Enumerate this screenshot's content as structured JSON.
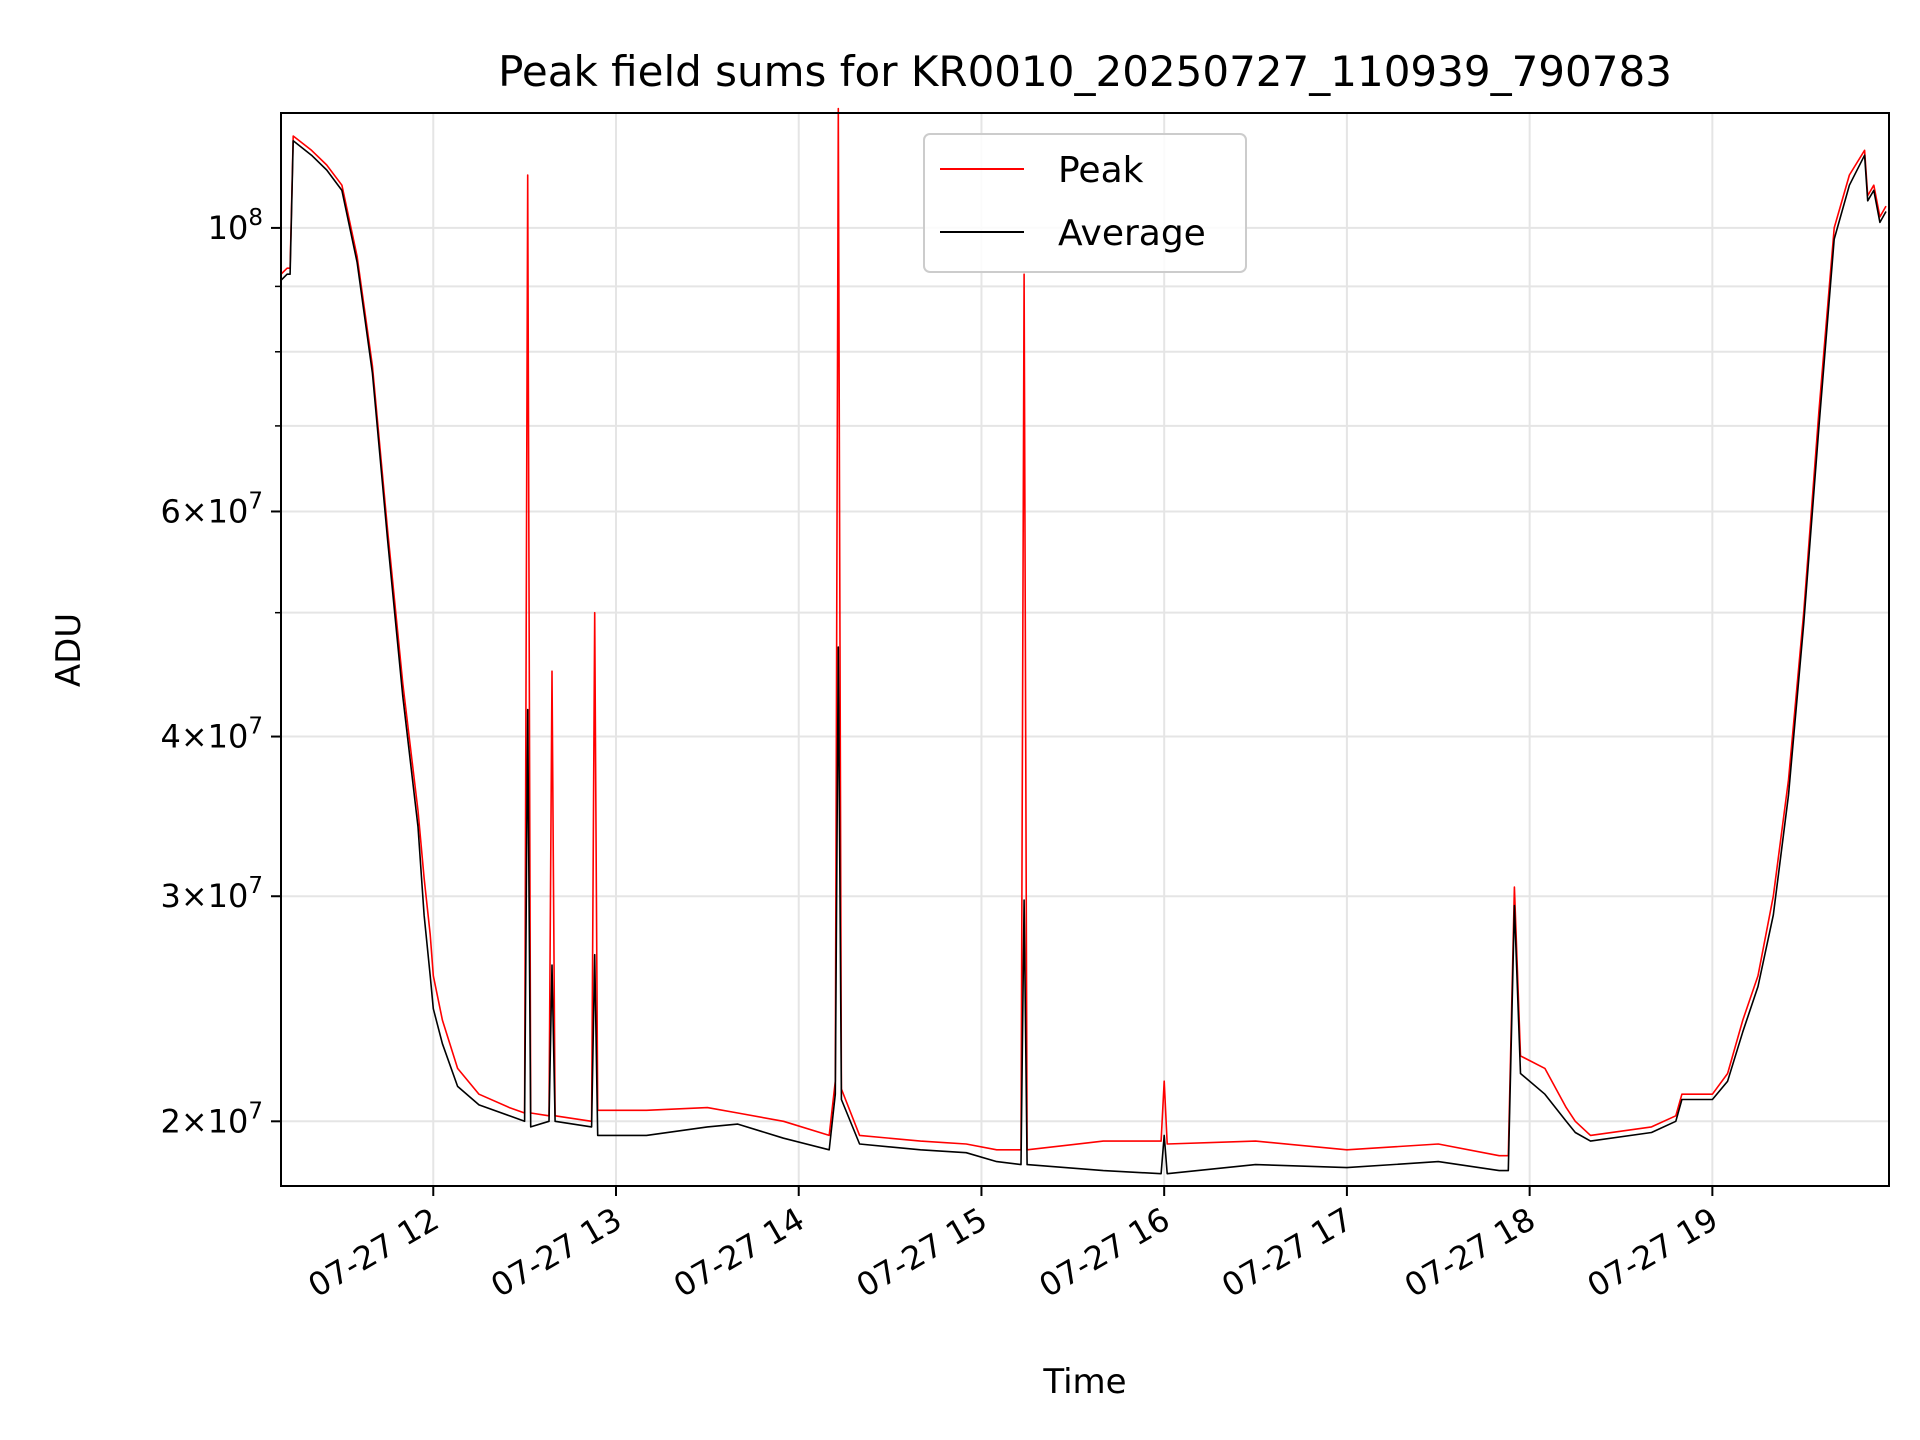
{
  "chart_data": {
    "type": "line",
    "title": "Peak field sums for KR0010_20250727_110939_790783",
    "xlabel": "Time",
    "ylabel": "ADU",
    "yscale": "log",
    "ylim": [
      17800000,
      123000000
    ],
    "xlim": [
      "2025-07-27 11:10",
      "2025-07-27 19:58"
    ],
    "grid": true,
    "legend_position": "top-center",
    "x_ticks": [
      {
        "label": "07-27 12",
        "value": "2025-07-27 12:00"
      },
      {
        "label": "07-27 13",
        "value": "2025-07-27 13:00"
      },
      {
        "label": "07-27 14",
        "value": "2025-07-27 14:00"
      },
      {
        "label": "07-27 15",
        "value": "2025-07-27 15:00"
      },
      {
        "label": "07-27 16",
        "value": "2025-07-27 16:00"
      },
      {
        "label": "07-27 17",
        "value": "2025-07-27 17:00"
      },
      {
        "label": "07-27 18",
        "value": "2025-07-27 18:00"
      },
      {
        "label": "07-27 19",
        "value": "2025-07-27 19:00"
      }
    ],
    "y_ticks": [
      {
        "base": "10",
        "exp": "8",
        "value": 100000000
      },
      {
        "coef": "6",
        "base": "10",
        "exp": "7",
        "value": 60000000
      },
      {
        "coef": "4",
        "base": "10",
        "exp": "7",
        "value": 40000000
      },
      {
        "coef": "3",
        "base": "10",
        "exp": "7",
        "value": 30000000
      },
      {
        "coef": "2",
        "base": "10",
        "exp": "7",
        "value": 20000000
      }
    ],
    "y_minor_ticks": [
      50000000,
      70000000,
      80000000,
      90000000
    ],
    "series": [
      {
        "name": "Peak",
        "color": "#ff0000",
        "points": [
          [
            "2025-07-27 11:10",
            92000000
          ],
          [
            "2025-07-27 11:12",
            93000000
          ],
          [
            "2025-07-27 11:13",
            93000000
          ],
          [
            "2025-07-27 11:14",
            118000000
          ],
          [
            "2025-07-27 11:20",
            115000000
          ],
          [
            "2025-07-27 11:25",
            112000000
          ],
          [
            "2025-07-27 11:30",
            108000000
          ],
          [
            "2025-07-27 11:35",
            95000000
          ],
          [
            "2025-07-27 11:40",
            78000000
          ],
          [
            "2025-07-27 11:45",
            58000000
          ],
          [
            "2025-07-27 11:50",
            44000000
          ],
          [
            "2025-07-27 11:55",
            35000000
          ],
          [
            "2025-07-27 11:57",
            31000000
          ],
          [
            "2025-07-27 11:59",
            28000000
          ],
          [
            "2025-07-27 12:00",
            26000000
          ],
          [
            "2025-07-27 12:03",
            24000000
          ],
          [
            "2025-07-27 12:08",
            22000000
          ],
          [
            "2025-07-27 12:15",
            21000000
          ],
          [
            "2025-07-27 12:25",
            20500000
          ],
          [
            "2025-07-27 12:30",
            20300000
          ],
          [
            "2025-07-27 12:31",
            110000000
          ],
          [
            "2025-07-27 12:32",
            20300000
          ],
          [
            "2025-07-27 12:38",
            20200000
          ],
          [
            "2025-07-27 12:39",
            45000000
          ],
          [
            "2025-07-27 12:40",
            20200000
          ],
          [
            "2025-07-27 12:52",
            20000000
          ],
          [
            "2025-07-27 12:53",
            50000000
          ],
          [
            "2025-07-27 12:54",
            20400000
          ],
          [
            "2025-07-27 13:10",
            20400000
          ],
          [
            "2025-07-27 13:30",
            20500000
          ],
          [
            "2025-07-27 13:40",
            20300000
          ],
          [
            "2025-07-27 13:55",
            20000000
          ],
          [
            "2025-07-27 14:10",
            19500000
          ],
          [
            "2025-07-27 14:12",
            21500000
          ],
          [
            "2025-07-27 14:13",
            124000000
          ],
          [
            "2025-07-27 14:14",
            21200000
          ],
          [
            "2025-07-27 14:20",
            19500000
          ],
          [
            "2025-07-27 14:40",
            19300000
          ],
          [
            "2025-07-27 14:55",
            19200000
          ],
          [
            "2025-07-27 15:05",
            19000000
          ],
          [
            "2025-07-27 15:13",
            19000000
          ],
          [
            "2025-07-27 15:14",
            92000000
          ],
          [
            "2025-07-27 15:15",
            19000000
          ],
          [
            "2025-07-27 15:40",
            19300000
          ],
          [
            "2025-07-27 15:59",
            19300000
          ],
          [
            "2025-07-27 16:00",
            21500000
          ],
          [
            "2025-07-27 16:01",
            19200000
          ],
          [
            "2025-07-27 16:30",
            19300000
          ],
          [
            "2025-07-27 17:00",
            19000000
          ],
          [
            "2025-07-27 17:30",
            19200000
          ],
          [
            "2025-07-27 17:50",
            18800000
          ],
          [
            "2025-07-27 17:53",
            18800000
          ],
          [
            "2025-07-27 17:55",
            30500000
          ],
          [
            "2025-07-27 17:57",
            22500000
          ],
          [
            "2025-07-27 18:05",
            22000000
          ],
          [
            "2025-07-27 18:12",
            20500000
          ],
          [
            "2025-07-27 18:15",
            20000000
          ],
          [
            "2025-07-27 18:20",
            19500000
          ],
          [
            "2025-07-27 18:40",
            19800000
          ],
          [
            "2025-07-27 18:48",
            20200000
          ],
          [
            "2025-07-27 18:50",
            21000000
          ],
          [
            "2025-07-27 19:00",
            21000000
          ],
          [
            "2025-07-27 19:05",
            21800000
          ],
          [
            "2025-07-27 19:10",
            24000000
          ],
          [
            "2025-07-27 19:15",
            26000000
          ],
          [
            "2025-07-27 19:20",
            30000000
          ],
          [
            "2025-07-27 19:25",
            37000000
          ],
          [
            "2025-07-27 19:30",
            50000000
          ],
          [
            "2025-07-27 19:35",
            72000000
          ],
          [
            "2025-07-27 19:40",
            100000000
          ],
          [
            "2025-07-27 19:45",
            110000000
          ],
          [
            "2025-07-27 19:50",
            115000000
          ],
          [
            "2025-07-27 19:51",
            106000000
          ],
          [
            "2025-07-27 19:53",
            108000000
          ],
          [
            "2025-07-27 19:55",
            102000000
          ],
          [
            "2025-07-27 19:57",
            104000000
          ]
        ]
      },
      {
        "name": "Average",
        "color": "#000000",
        "points": [
          [
            "2025-07-27 11:10",
            91000000
          ],
          [
            "2025-07-27 11:12",
            92000000
          ],
          [
            "2025-07-27 11:13",
            92000000
          ],
          [
            "2025-07-27 11:14",
            117000000
          ],
          [
            "2025-07-27 11:20",
            114000000
          ],
          [
            "2025-07-27 11:25",
            111000000
          ],
          [
            "2025-07-27 11:30",
            107000000
          ],
          [
            "2025-07-27 11:35",
            94000000
          ],
          [
            "2025-07-27 11:40",
            77000000
          ],
          [
            "2025-07-27 11:45",
            57000000
          ],
          [
            "2025-07-27 11:50",
            43000000
          ],
          [
            "2025-07-27 11:55",
            34000000
          ],
          [
            "2025-07-27 11:57",
            29000000
          ],
          [
            "2025-07-27 11:59",
            26000000
          ],
          [
            "2025-07-27 12:00",
            24500000
          ],
          [
            "2025-07-27 12:03",
            23000000
          ],
          [
            "2025-07-27 12:08",
            21300000
          ],
          [
            "2025-07-27 12:15",
            20600000
          ],
          [
            "2025-07-27 12:25",
            20200000
          ],
          [
            "2025-07-27 12:30",
            20000000
          ],
          [
            "2025-07-27 12:31",
            42000000
          ],
          [
            "2025-07-27 12:32",
            19800000
          ],
          [
            "2025-07-27 12:38",
            20000000
          ],
          [
            "2025-07-27 12:39",
            26500000
          ],
          [
            "2025-07-27 12:40",
            20000000
          ],
          [
            "2025-07-27 12:52",
            19800000
          ],
          [
            "2025-07-27 12:53",
            27000000
          ],
          [
            "2025-07-27 12:54",
            19500000
          ],
          [
            "2025-07-27 13:10",
            19500000
          ],
          [
            "2025-07-27 13:30",
            19800000
          ],
          [
            "2025-07-27 13:40",
            19900000
          ],
          [
            "2025-07-27 13:55",
            19400000
          ],
          [
            "2025-07-27 14:10",
            19000000
          ],
          [
            "2025-07-27 14:12",
            21000000
          ],
          [
            "2025-07-27 14:13",
            47000000
          ],
          [
            "2025-07-27 14:14",
            20800000
          ],
          [
            "2025-07-27 14:20",
            19200000
          ],
          [
            "2025-07-27 14:40",
            19000000
          ],
          [
            "2025-07-27 14:55",
            18900000
          ],
          [
            "2025-07-27 15:05",
            18600000
          ],
          [
            "2025-07-27 15:13",
            18500000
          ],
          [
            "2025-07-27 15:14",
            29800000
          ],
          [
            "2025-07-27 15:15",
            18500000
          ],
          [
            "2025-07-27 15:40",
            18300000
          ],
          [
            "2025-07-27 15:59",
            18200000
          ],
          [
            "2025-07-27 16:00",
            19500000
          ],
          [
            "2025-07-27 16:01",
            18200000
          ],
          [
            "2025-07-27 16:30",
            18500000
          ],
          [
            "2025-07-27 17:00",
            18400000
          ],
          [
            "2025-07-27 17:30",
            18600000
          ],
          [
            "2025-07-27 17:50",
            18300000
          ],
          [
            "2025-07-27 17:53",
            18300000
          ],
          [
            "2025-07-27 17:55",
            29500000
          ],
          [
            "2025-07-27 17:57",
            21800000
          ],
          [
            "2025-07-27 18:05",
            21000000
          ],
          [
            "2025-07-27 18:12",
            20000000
          ],
          [
            "2025-07-27 18:15",
            19600000
          ],
          [
            "2025-07-27 18:20",
            19300000
          ],
          [
            "2025-07-27 18:40",
            19600000
          ],
          [
            "2025-07-27 18:48",
            20000000
          ],
          [
            "2025-07-27 18:50",
            20800000
          ],
          [
            "2025-07-27 19:00",
            20800000
          ],
          [
            "2025-07-27 19:05",
            21500000
          ],
          [
            "2025-07-27 19:10",
            23500000
          ],
          [
            "2025-07-27 19:15",
            25500000
          ],
          [
            "2025-07-27 19:20",
            29000000
          ],
          [
            "2025-07-27 19:25",
            36000000
          ],
          [
            "2025-07-27 19:30",
            49000000
          ],
          [
            "2025-07-27 19:35",
            70000000
          ],
          [
            "2025-07-27 19:40",
            98000000
          ],
          [
            "2025-07-27 19:45",
            108000000
          ],
          [
            "2025-07-27 19:50",
            114000000
          ],
          [
            "2025-07-27 19:51",
            105000000
          ],
          [
            "2025-07-27 19:53",
            107000000
          ],
          [
            "2025-07-27 19:55",
            101000000
          ],
          [
            "2025-07-27 19:57",
            103000000
          ]
        ]
      }
    ]
  }
}
